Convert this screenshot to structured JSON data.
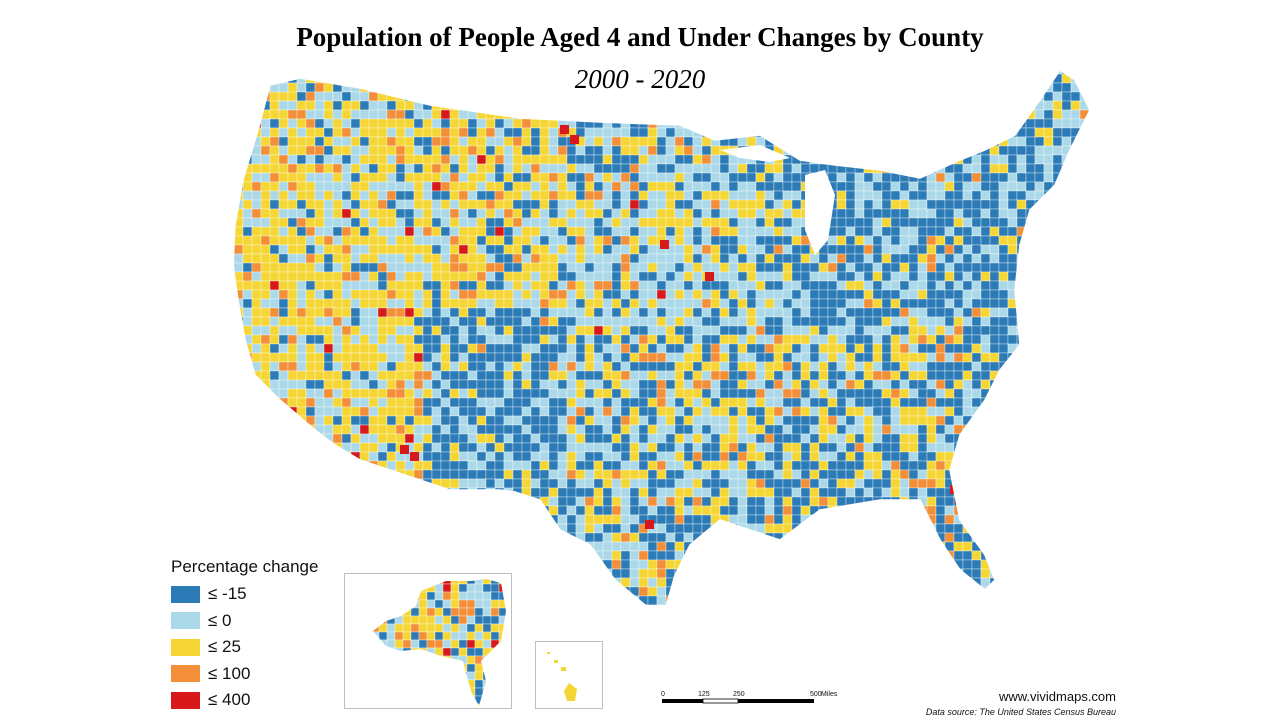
{
  "title": "Population of People Aged 4 and Under Changes by County",
  "subtitle": "2000 - 2020",
  "legend": {
    "title": "Percentage change",
    "items": [
      {
        "label": "≤ -15",
        "color": "#2c7bb6"
      },
      {
        "label": "≤ 0",
        "color": "#abd9e9"
      },
      {
        "label": "≤ 25",
        "color": "#f5d635"
      },
      {
        "label": "≤ 100",
        "color": "#f28f38"
      },
      {
        "label": "≤ 400",
        "color": "#d7191c"
      }
    ]
  },
  "scale": {
    "ticks": [
      "0",
      "125",
      "250",
      "500"
    ],
    "unit": "Miles"
  },
  "credit": {
    "site": "www.vividmaps.com",
    "source": "Data source: The United States Census Bureau"
  },
  "map_colors": {
    "border": "#ffffff",
    "inset_border": "#bfbfbf"
  }
}
